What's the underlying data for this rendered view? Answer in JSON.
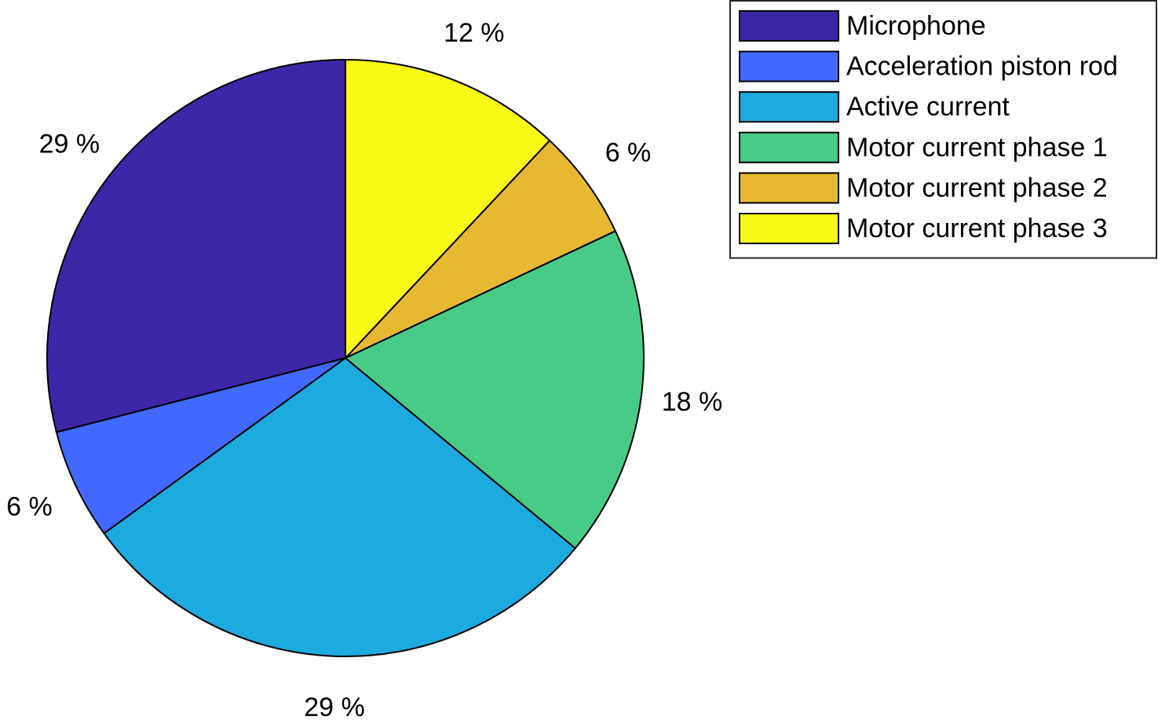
{
  "chart_data": {
    "type": "pie",
    "title": "",
    "categories": [
      "Microphone",
      "Acceleration piston rod",
      "Active current",
      "Motor current phase 1",
      "Motor current phase 2",
      "Motor current phase 3"
    ],
    "values": [
      29,
      6,
      29,
      18,
      6,
      12
    ],
    "value_labels": [
      "29 %",
      "6 %",
      "29 %",
      "18 %",
      "6 %",
      "12 %"
    ],
    "colors": [
      "#3D26A8",
      "#4169FF",
      "#1CAADF",
      "#48CB86",
      "#E7B932",
      "#F9F916"
    ],
    "start": "top",
    "direction": "counterclockwise",
    "legend_placement": "top-right"
  }
}
